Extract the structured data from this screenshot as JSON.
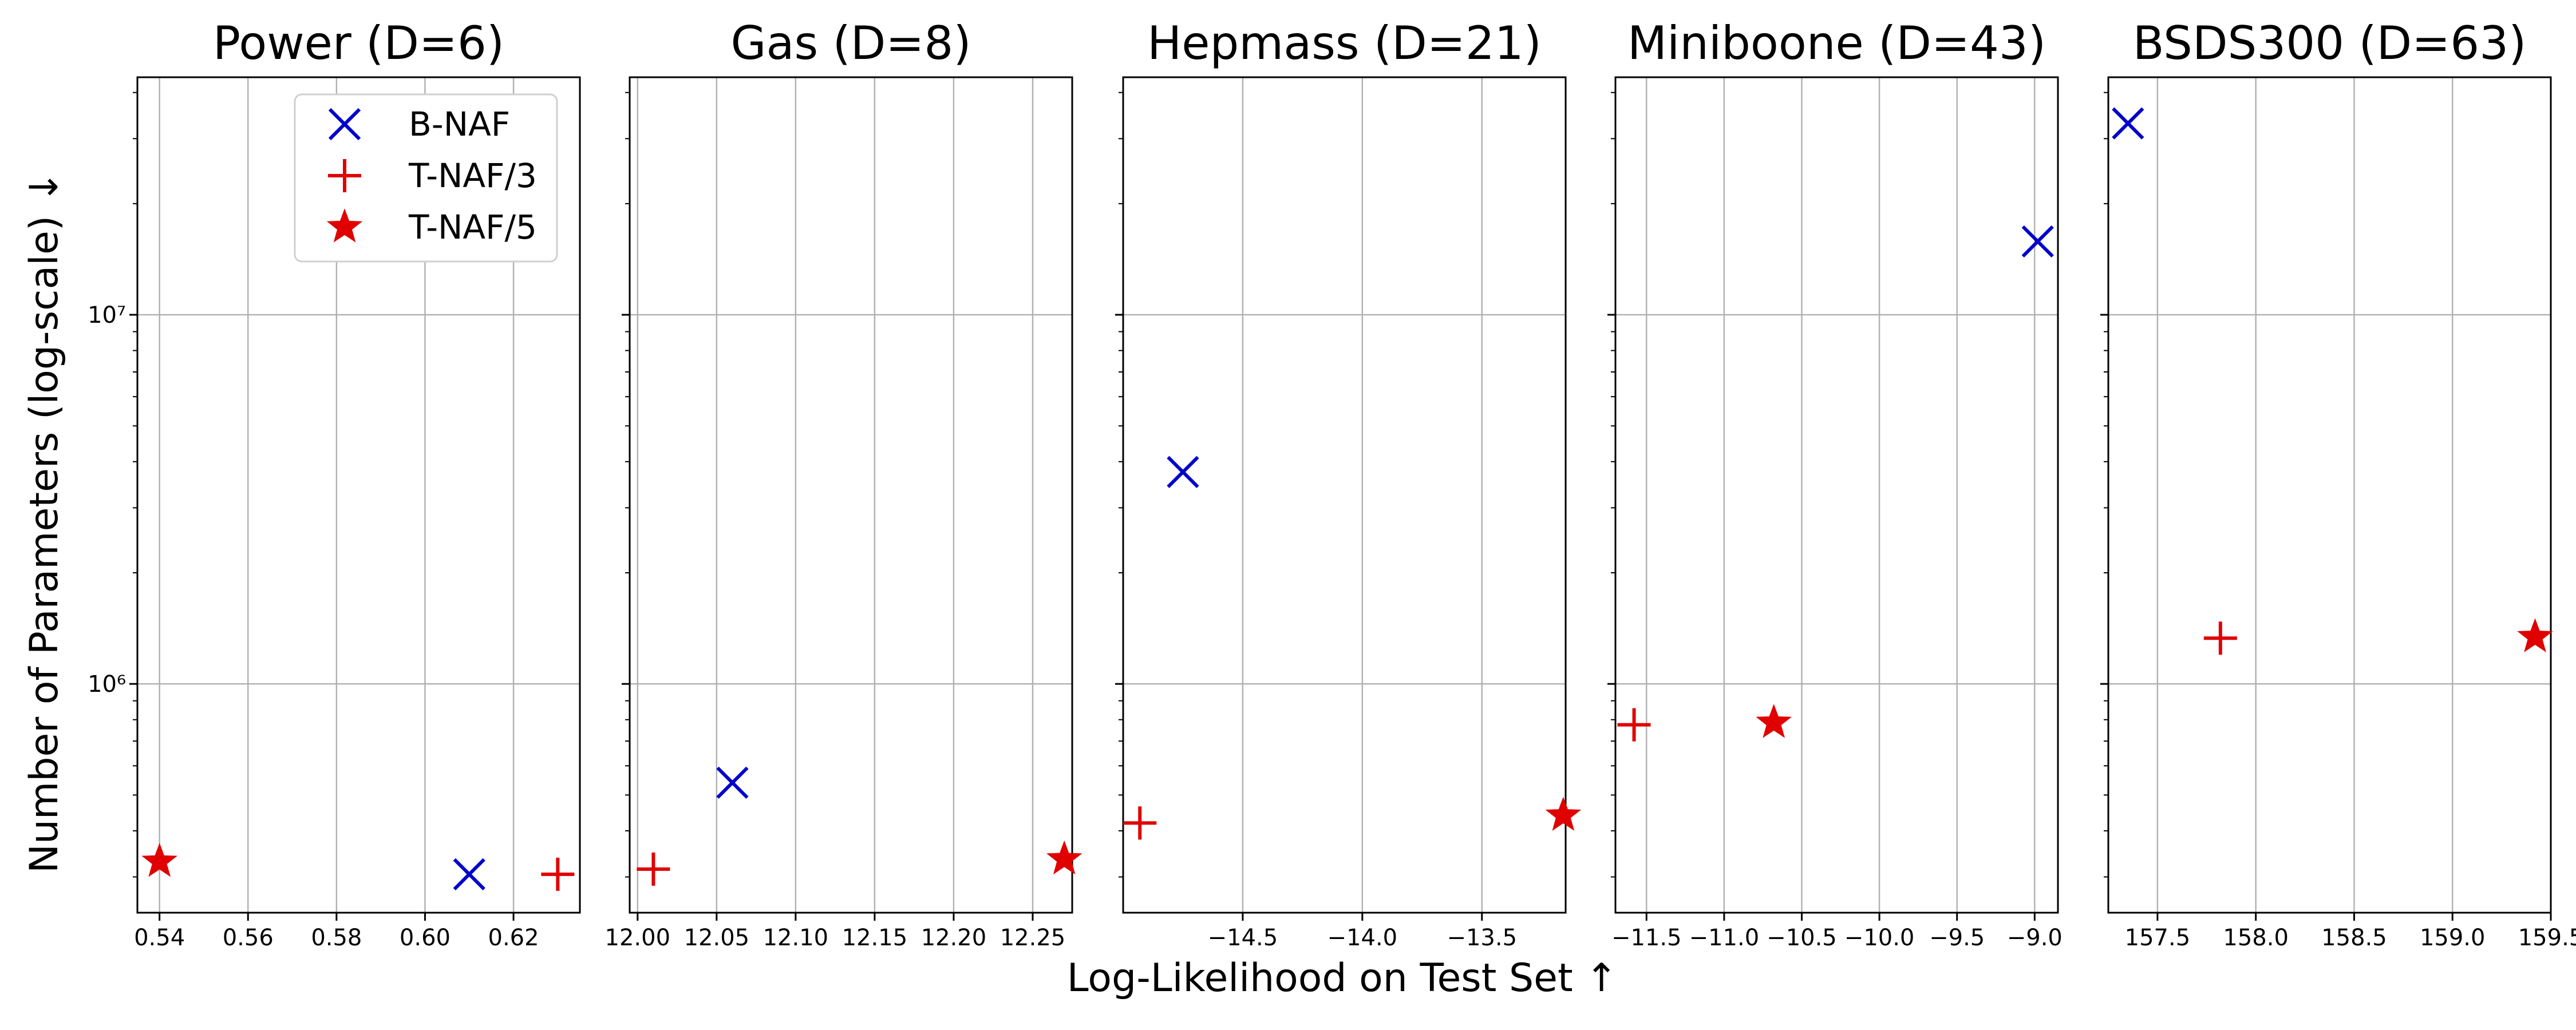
{
  "figure": {
    "xlabel": "Log-Likelihood on Test Set ↑",
    "ylabel": "Number of Parameters (log-scale) ↓"
  },
  "legend": {
    "placement": "top-right",
    "entries": [
      {
        "label": "B-NAF",
        "marker": "x",
        "color": "#0000cc"
      },
      {
        "label": "T-NAF/3",
        "marker": "plus",
        "color": "#e00000"
      },
      {
        "label": "T-NAF/5",
        "marker": "star",
        "color": "#e00000"
      }
    ]
  },
  "chart_data": [
    {
      "type": "scatter",
      "title": "Power (D=6)",
      "xlim": [
        0.535,
        0.635
      ],
      "ylim": [
        240000,
        44000000
      ],
      "yscale": "log",
      "grid": true,
      "xticks": [
        0.54,
        0.56,
        0.58,
        0.6,
        0.62
      ],
      "xtick_labels": [
        "0.54",
        "0.56",
        "0.58",
        "0.60",
        "0.62"
      ],
      "yticks": [
        1000000,
        10000000
      ],
      "ytick_labels": [
        "10⁶",
        "10⁷"
      ],
      "series": [
        {
          "name": "B-NAF",
          "marker": "x",
          "color": "#0000cc",
          "points": [
            [
              0.61,
              305000
            ]
          ]
        },
        {
          "name": "T-NAF/3",
          "marker": "plus",
          "color": "#e00000",
          "points": [
            [
              0.63,
              305000
            ]
          ]
        },
        {
          "name": "T-NAF/5",
          "marker": "star",
          "color": "#e00000",
          "points": [
            [
              0.54,
              330000
            ]
          ]
        }
      ]
    },
    {
      "type": "scatter",
      "title": "Gas (D=8)",
      "xlim": [
        11.995,
        12.275
      ],
      "ylim": [
        240000,
        44000000
      ],
      "yscale": "log",
      "grid": true,
      "xticks": [
        12.0,
        12.05,
        12.1,
        12.15,
        12.2,
        12.25
      ],
      "xtick_labels": [
        "12.00",
        "12.05",
        "12.10",
        "12.15",
        "12.20",
        "12.25"
      ],
      "yticks": [
        1000000,
        10000000
      ],
      "ytick_labels": [
        "",
        ""
      ],
      "series": [
        {
          "name": "B-NAF",
          "marker": "x",
          "color": "#0000cc",
          "points": [
            [
              12.06,
              540000
            ]
          ]
        },
        {
          "name": "T-NAF/3",
          "marker": "plus",
          "color": "#e00000",
          "points": [
            [
              12.01,
              315000
            ]
          ]
        },
        {
          "name": "T-NAF/5",
          "marker": "star",
          "color": "#e00000",
          "points": [
            [
              12.27,
              335000
            ]
          ]
        }
      ]
    },
    {
      "type": "scatter",
      "title": "Hepmass (D=21)",
      "xlim": [
        -15.0,
        -13.15
      ],
      "ylim": [
        240000,
        44000000
      ],
      "yscale": "log",
      "grid": true,
      "xticks": [
        -14.5,
        -14.0,
        -13.5
      ],
      "xtick_labels": [
        "−14.5",
        "−14.0",
        "−13.5"
      ],
      "yticks": [
        1000000,
        10000000
      ],
      "ytick_labels": [
        "",
        ""
      ],
      "series": [
        {
          "name": "B-NAF",
          "marker": "x",
          "color": "#0000cc",
          "points": [
            [
              -14.75,
              3750000
            ]
          ]
        },
        {
          "name": "T-NAF/3",
          "marker": "plus",
          "color": "#e00000",
          "points": [
            [
              -14.93,
              420000
            ]
          ]
        },
        {
          "name": "T-NAF/5",
          "marker": "star",
          "color": "#e00000",
          "points": [
            [
              -13.16,
              440000
            ]
          ]
        }
      ]
    },
    {
      "type": "scatter",
      "title": "Miniboone (D=43)",
      "xlim": [
        -11.7,
        -8.85
      ],
      "ylim": [
        240000,
        44000000
      ],
      "yscale": "log",
      "grid": true,
      "xticks": [
        -11.5,
        -11.0,
        -10.5,
        -10.0,
        -9.5,
        -9.0
      ],
      "xtick_labels": [
        "−11.5",
        "−11.0",
        "−10.5",
        "−10.0",
        "−9.5",
        "−9.0"
      ],
      "yticks": [
        1000000,
        10000000
      ],
      "ytick_labels": [
        "",
        ""
      ],
      "series": [
        {
          "name": "B-NAF",
          "marker": "x",
          "color": "#0000cc",
          "points": [
            [
              -8.98,
              15800000
            ]
          ]
        },
        {
          "name": "T-NAF/3",
          "marker": "plus",
          "color": "#e00000",
          "points": [
            [
              -11.58,
              775000
            ]
          ]
        },
        {
          "name": "T-NAF/5",
          "marker": "star",
          "color": "#e00000",
          "points": [
            [
              -10.68,
              785000
            ]
          ]
        }
      ]
    },
    {
      "type": "scatter",
      "title": "BSDS300 (D=63)",
      "xlim": [
        157.25,
        159.5
      ],
      "ylim": [
        240000,
        44000000
      ],
      "yscale": "log",
      "grid": true,
      "xticks": [
        157.5,
        158.0,
        158.5,
        159.0,
        159.5
      ],
      "xtick_labels": [
        "157.5",
        "158.0",
        "158.5",
        "159.0",
        "159.5"
      ],
      "yticks": [
        1000000,
        10000000
      ],
      "ytick_labels": [
        "",
        ""
      ],
      "series": [
        {
          "name": "B-NAF",
          "marker": "x",
          "color": "#0000cc",
          "points": [
            [
              157.35,
              33000000
            ]
          ]
        },
        {
          "name": "T-NAF/3",
          "marker": "plus",
          "color": "#e00000",
          "points": [
            [
              157.82,
              1330000
            ]
          ]
        },
        {
          "name": "T-NAF/5",
          "marker": "star",
          "color": "#e00000",
          "points": [
            [
              159.42,
              1340000
            ]
          ]
        }
      ]
    }
  ]
}
